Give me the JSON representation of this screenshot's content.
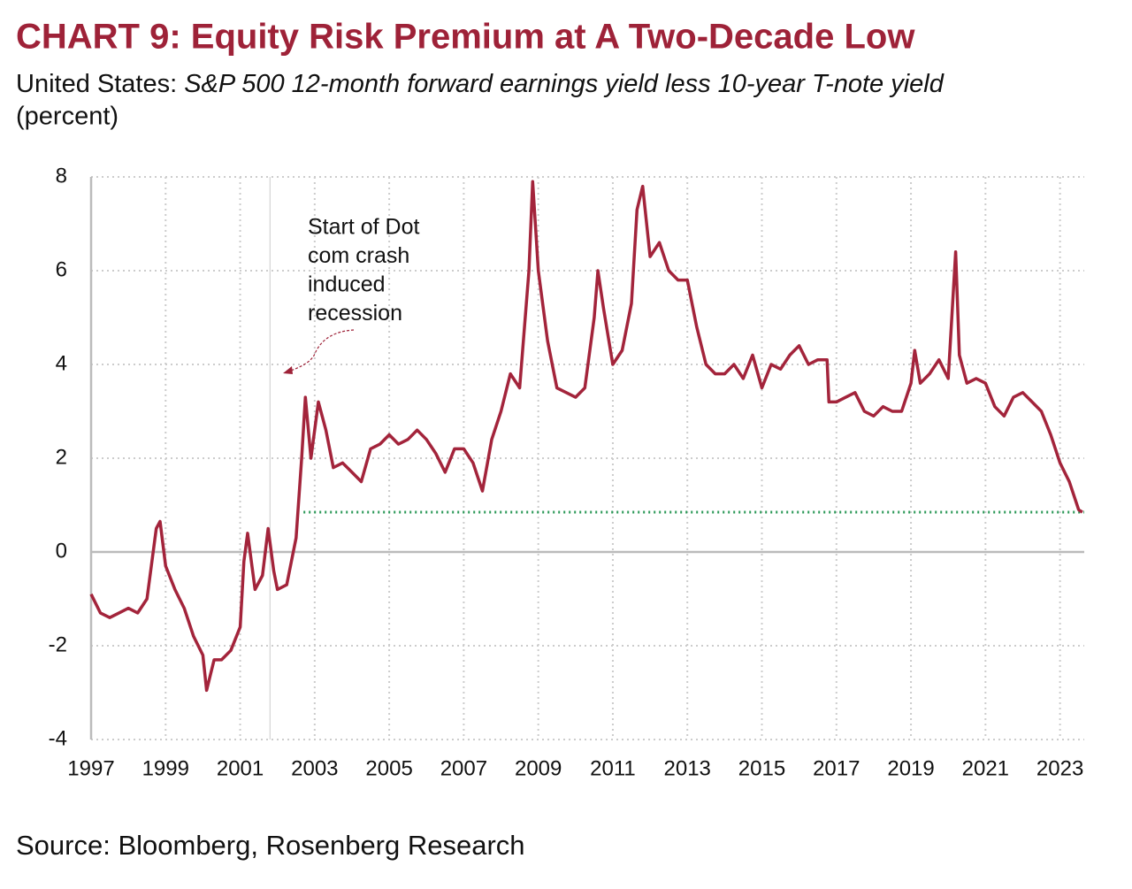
{
  "chart_data": {
    "type": "line",
    "title": "CHART 9: Equity Risk Premium at A Two-Decade Low",
    "subtitle_prefix": "United States:",
    "subtitle": "S&P 500 12-month forward earnings yield less 10-year T-note yield",
    "unit": "(percent)",
    "source": "Source: Bloomberg, Rosenberg Research",
    "annotation": {
      "lines": [
        "Start of Dot",
        "com crash",
        "induced",
        "recession"
      ],
      "x": 2001.8
    },
    "reference_line": {
      "value": 0.85,
      "x_start": 2002.7,
      "color": "#2e9a5a"
    },
    "color": "#a3243b",
    "x": [
      1997.0,
      1997.25,
      1997.5,
      1997.75,
      1998.0,
      1998.25,
      1998.5,
      1998.75,
      1998.85,
      1999.0,
      1999.25,
      1999.5,
      1999.75,
      2000.0,
      2000.1,
      2000.3,
      2000.5,
      2000.75,
      2001.0,
      2001.1,
      2001.2,
      2001.4,
      2001.6,
      2001.75,
      2001.9,
      2002.0,
      2002.25,
      2002.5,
      2002.65,
      2002.75,
      2002.9,
      2003.1,
      2003.3,
      2003.5,
      2003.75,
      2004.0,
      2004.25,
      2004.5,
      2004.75,
      2005.0,
      2005.25,
      2005.5,
      2005.75,
      2006.0,
      2006.25,
      2006.5,
      2006.75,
      2007.0,
      2007.25,
      2007.5,
      2007.75,
      2008.0,
      2008.25,
      2008.5,
      2008.75,
      2008.85,
      2009.0,
      2009.25,
      2009.5,
      2009.75,
      2010.0,
      2010.25,
      2010.5,
      2010.6,
      2010.75,
      2011.0,
      2011.25,
      2011.5,
      2011.65,
      2011.8,
      2012.0,
      2012.25,
      2012.5,
      2012.75,
      2013.0,
      2013.25,
      2013.5,
      2013.75,
      2014.0,
      2014.25,
      2014.5,
      2014.75,
      2015.0,
      2015.25,
      2015.5,
      2015.75,
      2016.0,
      2016.25,
      2016.5,
      2016.75,
      2016.8,
      2017.0,
      2017.25,
      2017.5,
      2017.75,
      2018.0,
      2018.25,
      2018.5,
      2018.75,
      2019.0,
      2019.1,
      2019.25,
      2019.5,
      2019.75,
      2020.0,
      2020.2,
      2020.3,
      2020.5,
      2020.75,
      2021.0,
      2021.25,
      2021.5,
      2021.75,
      2022.0,
      2022.25,
      2022.5,
      2022.75,
      2023.0,
      2023.25,
      2023.5,
      2023.6
    ],
    "values": [
      -0.9,
      -1.3,
      -1.4,
      -1.3,
      -1.2,
      -1.3,
      -1.0,
      0.5,
      0.65,
      -0.3,
      -0.8,
      -1.2,
      -1.8,
      -2.2,
      -2.95,
      -2.3,
      -2.3,
      -2.1,
      -1.6,
      -0.2,
      0.4,
      -0.8,
      -0.5,
      0.5,
      -0.4,
      -0.8,
      -0.7,
      0.3,
      2.0,
      3.3,
      2.0,
      3.2,
      2.6,
      1.8,
      1.9,
      1.7,
      1.5,
      2.2,
      2.3,
      2.5,
      2.3,
      2.4,
      2.6,
      2.4,
      2.1,
      1.7,
      2.2,
      2.2,
      1.9,
      1.3,
      2.4,
      3.0,
      3.8,
      3.5,
      6.0,
      7.9,
      6.0,
      4.5,
      3.5,
      3.4,
      3.3,
      3.5,
      5.0,
      6.0,
      5.2,
      4.0,
      4.3,
      5.3,
      7.3,
      7.8,
      6.3,
      6.6,
      6.0,
      5.8,
      5.8,
      4.8,
      4.0,
      3.8,
      3.8,
      4.0,
      3.7,
      4.2,
      3.5,
      4.0,
      3.9,
      4.2,
      4.4,
      4.0,
      4.1,
      4.1,
      3.2,
      3.2,
      3.3,
      3.4,
      3.0,
      2.9,
      3.1,
      3.0,
      3.0,
      3.6,
      4.3,
      3.6,
      3.8,
      4.1,
      3.7,
      6.4,
      4.2,
      3.6,
      3.7,
      3.6,
      3.1,
      2.9,
      3.3,
      3.4,
      3.2,
      3.0,
      2.5,
      1.9,
      1.5,
      0.9,
      0.85
    ],
    "xlim": [
      1997,
      2023.65
    ],
    "xticks": [
      1997,
      1999,
      2001,
      2003,
      2005,
      2007,
      2009,
      2011,
      2013,
      2015,
      2017,
      2019,
      2021,
      2023
    ],
    "ylim": [
      -4,
      8
    ],
    "yticks": [
      -4,
      -2,
      0,
      2,
      4,
      6,
      8
    ],
    "grid": true
  }
}
